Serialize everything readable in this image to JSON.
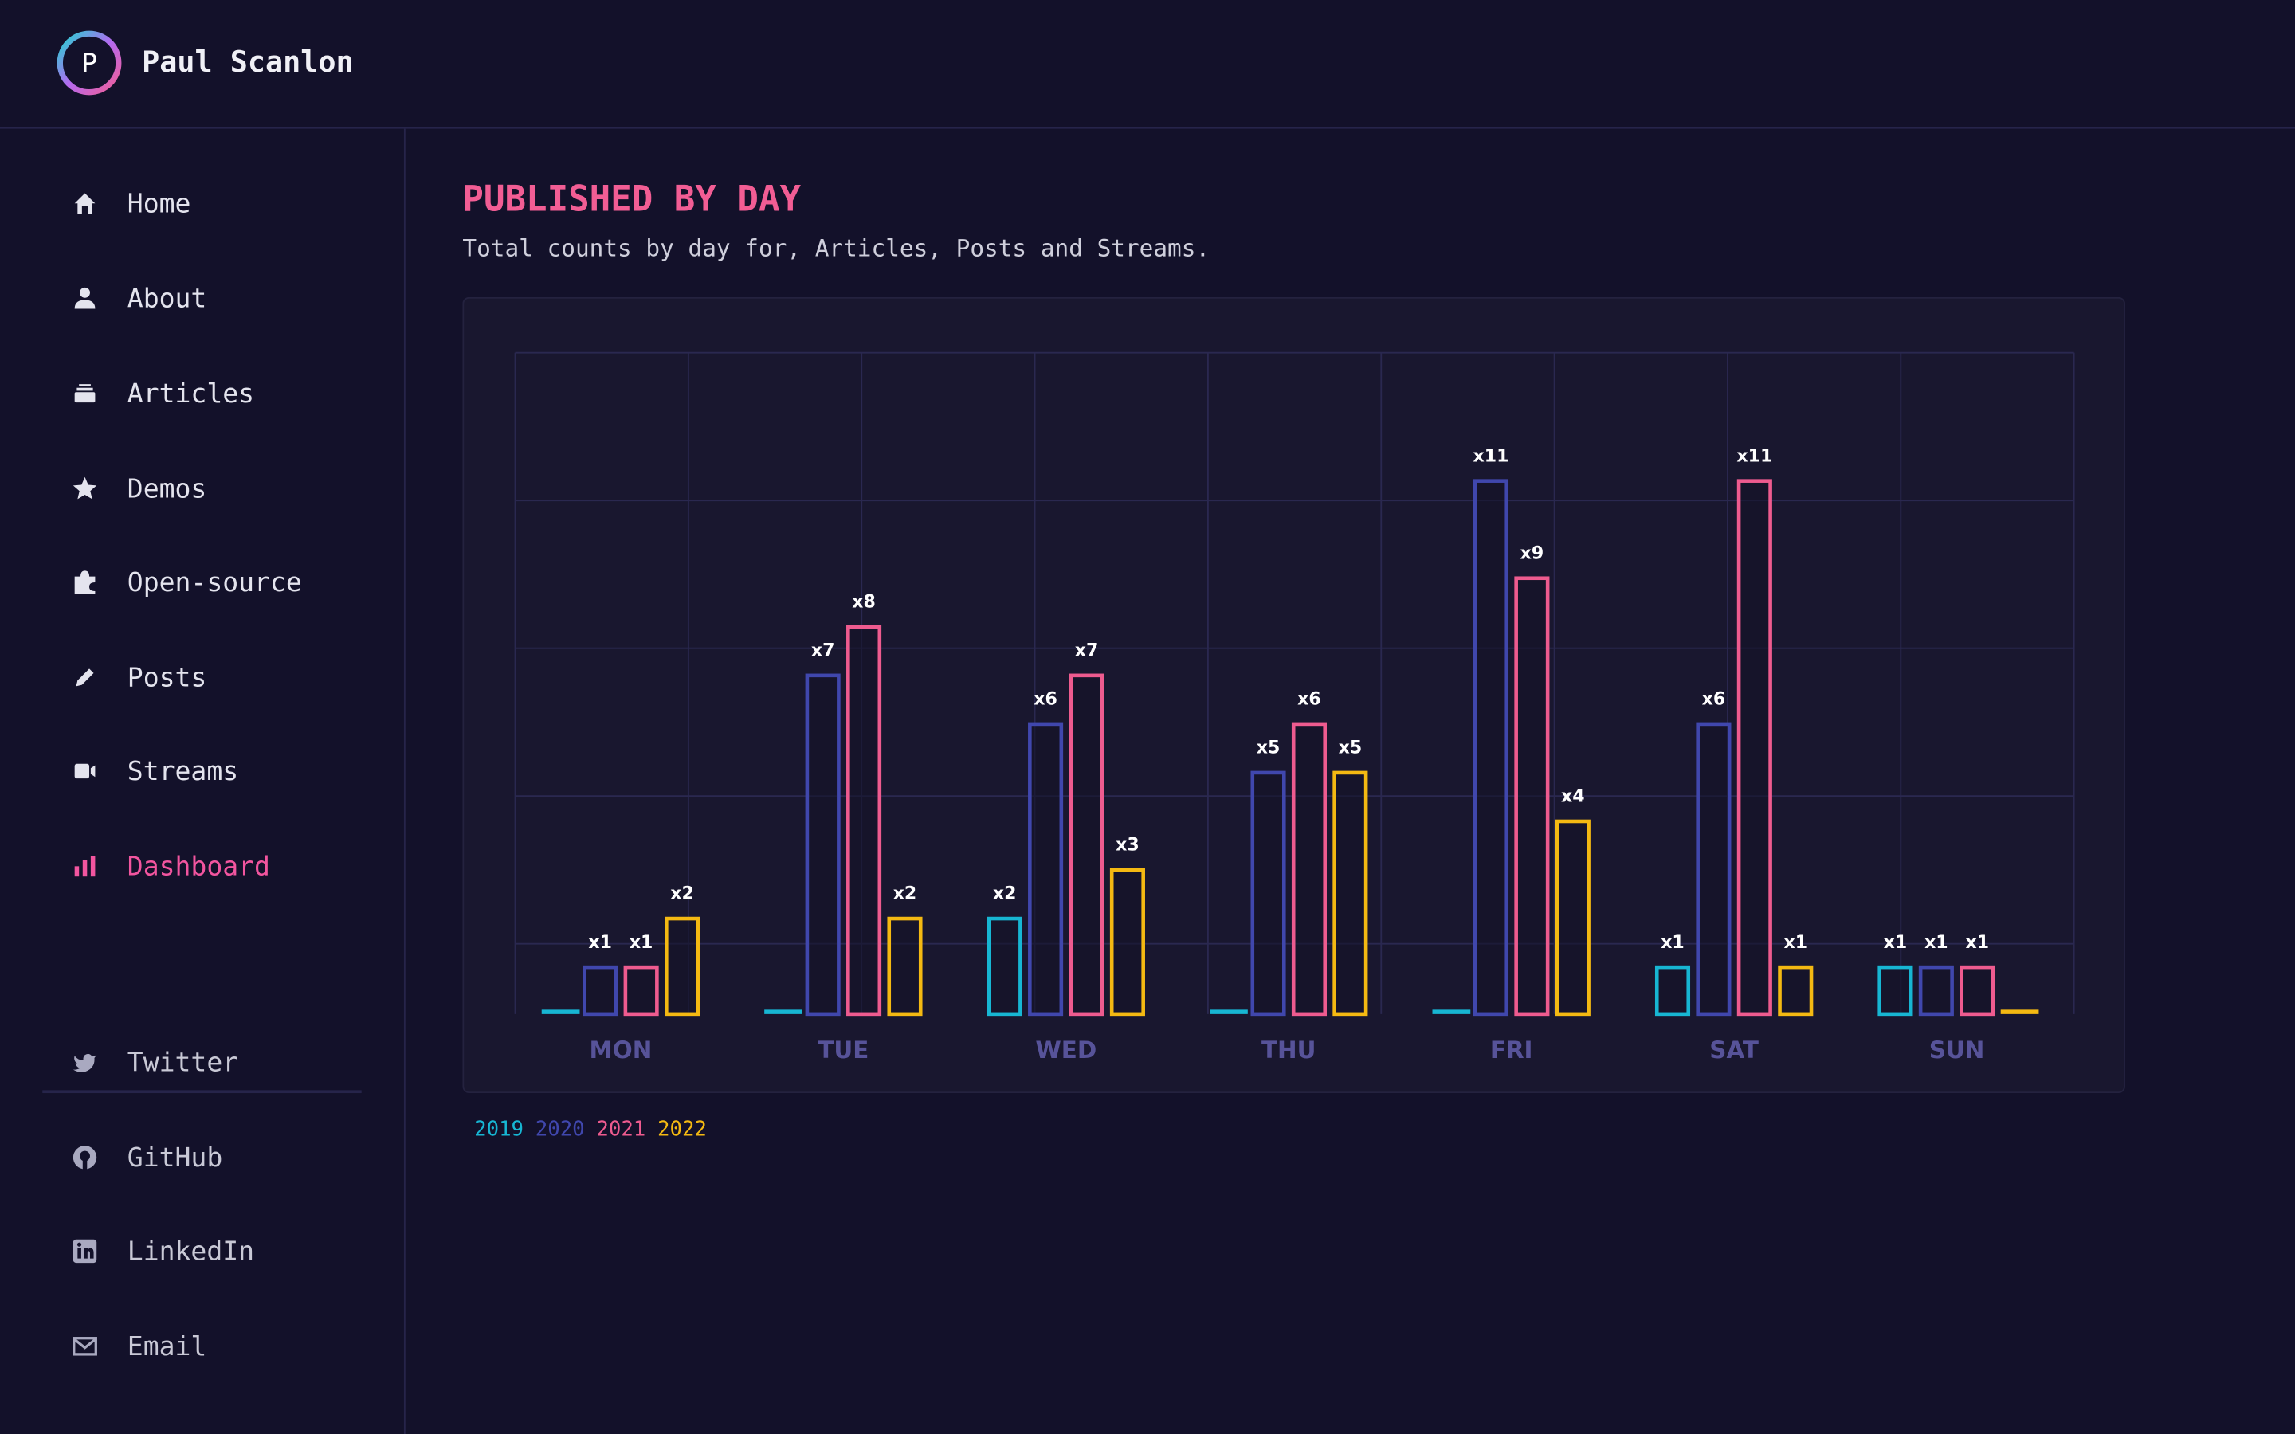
{
  "header": {
    "logo_letter": "P",
    "name": "Paul Scanlon"
  },
  "nav": [
    "Home",
    "About",
    "Articles",
    "Demos",
    "Open-source",
    "Posts",
    "Streams",
    "Dashboard"
  ],
  "social": [
    "Twitter",
    "GitHub",
    "LinkedIn",
    "Email"
  ],
  "page": {
    "title": "PUBLISHED BY DAY",
    "subtitle": "Total counts by day for, Articles, Posts and Streams."
  },
  "chart_data": {
    "type": "bar",
    "categories": [
      "MON",
      "TUE",
      "WED",
      "THU",
      "FRI",
      "SAT",
      "SUN"
    ],
    "series": [
      {
        "name": "2019",
        "color": "#17b6d3",
        "values": [
          0,
          0,
          2,
          0,
          0,
          1,
          1
        ],
        "value_labels": [
          null,
          null,
          "x2",
          null,
          null,
          "x1",
          "x1"
        ]
      },
      {
        "name": "2020",
        "color": "#4047ad",
        "values": [
          1,
          7,
          6,
          5,
          11,
          6,
          1
        ],
        "value_labels": [
          "x1",
          "x7",
          "x6",
          "x5",
          "x11",
          "x6",
          "x1"
        ]
      },
      {
        "name": "2021",
        "color": "#ee5b8f",
        "values": [
          1,
          8,
          7,
          6,
          9,
          11,
          1
        ],
        "value_labels": [
          "x1",
          "x8",
          "x7",
          "x6",
          "x9",
          "x11",
          "x1"
        ]
      },
      {
        "name": "2022",
        "color": "#f4b912",
        "values": [
          2,
          2,
          3,
          5,
          4,
          1,
          0
        ],
        "value_labels": [
          "x2",
          "x2",
          "x3",
          "x5",
          "x4",
          "x1",
          null
        ]
      }
    ],
    "ylim": [
      0,
      13.6
    ],
    "grid": true
  }
}
